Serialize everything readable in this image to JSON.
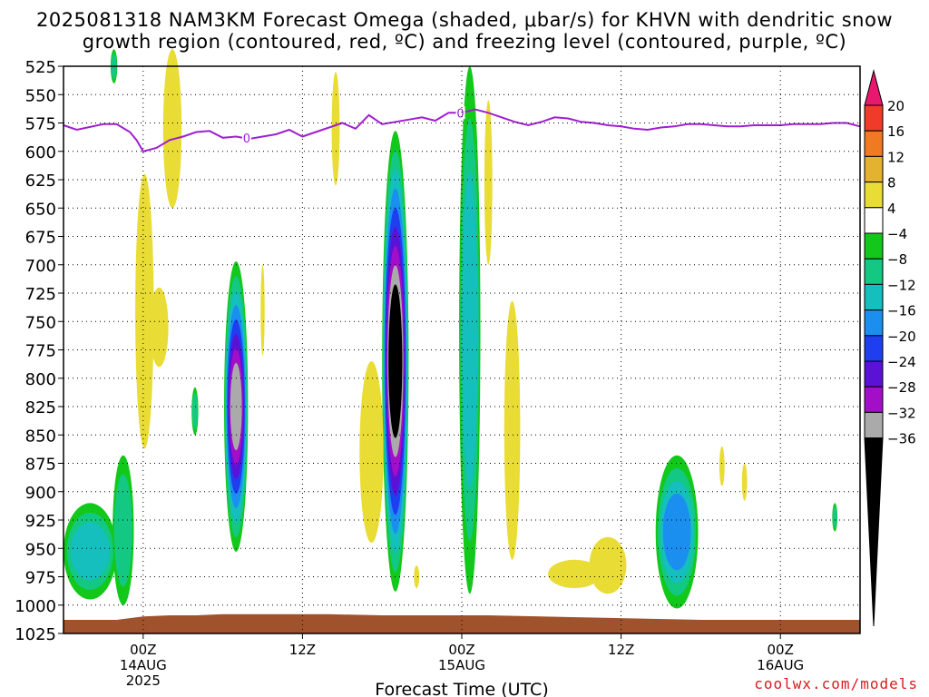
{
  "title_line1": "2025081318 NAM3KM Forecast Omega (shaded, μbar/s) for KHVN with dendritic snow",
  "title_line2": "growth region (contoured, red, ºC) and freezing level (contoured, purple, ºC)",
  "credit": "coolwx.com/models",
  "chart_data": {
    "type": "heatmap",
    "title": "2025081318 NAM3KM Forecast Omega (shaded, μbar/s) for KHVN with dendritic snow growth region (contoured, red, ºC) and freezing level (contoured, purple, ºC)",
    "xlabel": "Forecast Time (UTC)",
    "ylabel": "",
    "x_hours_range": [
      -6,
      54
    ],
    "x_ticks": [
      {
        "h": 0,
        "label": "00Z",
        "sub": [
          "14AUG",
          "2025"
        ]
      },
      {
        "h": 12,
        "label": "12Z",
        "sub": []
      },
      {
        "h": 24,
        "label": "00Z",
        "sub": [
          "15AUG"
        ]
      },
      {
        "h": 36,
        "label": "12Z",
        "sub": []
      },
      {
        "h": 48,
        "label": "00Z",
        "sub": [
          "16AUG"
        ]
      }
    ],
    "y_range": [
      525,
      1025
    ],
    "y_ticks": [
      525,
      550,
      575,
      600,
      625,
      650,
      675,
      700,
      725,
      750,
      775,
      800,
      825,
      850,
      875,
      900,
      925,
      950,
      975,
      1000,
      1025
    ],
    "colorbar": {
      "labels": [
        "20",
        "16",
        "12",
        "8",
        "4",
        "−4",
        "−8",
        "−12",
        "−16",
        "−20",
        "−24",
        "−28",
        "−32",
        "−36"
      ],
      "colors": [
        "#e8186e",
        "#f03a2a",
        "#f07a20",
        "#e3b22e",
        "#e9dc34",
        "#ffffff",
        "#12c81b",
        "#12c883",
        "#14bfbd",
        "#1a8ff0",
        "#1f3ef0",
        "#5a12d6",
        "#a30fc8",
        "#aaaaaa",
        "#000000"
      ]
    },
    "freezing_level": {
      "label": "0",
      "points": [
        [
          -6,
          577
        ],
        [
          -5,
          581
        ],
        [
          -3,
          576
        ],
        [
          -2,
          576
        ],
        [
          -1,
          583
        ],
        [
          -0.5,
          590
        ],
        [
          0,
          600
        ],
        [
          1,
          597
        ],
        [
          2,
          590
        ],
        [
          3,
          587
        ],
        [
          4,
          583
        ],
        [
          5,
          582
        ],
        [
          6,
          588
        ],
        [
          7,
          587
        ],
        [
          8,
          589
        ],
        [
          9,
          587
        ],
        [
          10,
          585
        ],
        [
          11,
          581
        ],
        [
          12,
          587
        ],
        [
          13,
          583
        ],
        [
          14,
          579
        ],
        [
          15,
          575
        ],
        [
          16,
          580
        ],
        [
          17,
          568
        ],
        [
          18,
          576
        ],
        [
          19,
          574
        ],
        [
          20,
          572
        ],
        [
          21,
          570
        ],
        [
          22,
          573
        ],
        [
          23,
          566
        ],
        [
          24,
          566
        ],
        [
          25,
          563
        ],
        [
          26,
          566
        ],
        [
          27,
          570
        ],
        [
          28,
          574
        ],
        [
          29,
          577
        ],
        [
          30,
          574
        ],
        [
          31,
          570
        ],
        [
          32,
          571
        ],
        [
          33,
          574
        ],
        [
          34,
          575
        ],
        [
          35,
          577
        ],
        [
          36,
          578
        ],
        [
          37,
          580
        ],
        [
          38,
          581
        ],
        [
          39,
          579
        ],
        [
          40,
          578
        ],
        [
          41,
          576
        ],
        [
          42,
          576
        ],
        [
          43,
          577
        ],
        [
          44,
          578
        ],
        [
          45,
          578
        ],
        [
          46,
          577
        ],
        [
          47,
          577
        ],
        [
          48,
          577
        ],
        [
          49,
          576
        ],
        [
          50,
          576
        ],
        [
          51,
          576
        ],
        [
          52,
          575
        ],
        [
          53,
          575
        ],
        [
          54,
          578
        ]
      ]
    },
    "surface_points": [
      [
        -6,
        1013
      ],
      [
        -2,
        1013
      ],
      [
        0,
        1010
      ],
      [
        2,
        1009
      ],
      [
        4,
        1009
      ],
      [
        6,
        1008
      ],
      [
        10,
        1008
      ],
      [
        14,
        1008
      ],
      [
        18,
        1009
      ],
      [
        22,
        1009
      ],
      [
        26,
        1009
      ],
      [
        30,
        1010
      ],
      [
        34,
        1011
      ],
      [
        38,
        1012
      ],
      [
        42,
        1013
      ],
      [
        46,
        1013
      ],
      [
        50,
        1013
      ],
      [
        54,
        1013
      ]
    ],
    "omega_features": [
      {
        "h": 7,
        "p1": 697,
        "p2": 953,
        "w": 0.9,
        "min": -32
      },
      {
        "h": 19,
        "p1": 582,
        "p2": 988,
        "w": 1.0,
        "min": -40
      },
      {
        "h": 24.6,
        "p1": 525,
        "p2": 990,
        "w": 0.8,
        "min": -12
      },
      {
        "h": 40.2,
        "p1": 868,
        "p2": 1003,
        "w": 1.6,
        "min": -16
      },
      {
        "h": -4,
        "p1": 910,
        "p2": 995,
        "w": 2.0,
        "min": -12
      },
      {
        "h": -1.5,
        "p1": 868,
        "p2": 1000,
        "w": 0.8,
        "min": -8
      },
      {
        "h": 3.9,
        "p1": 808,
        "p2": 850,
        "w": 0.25,
        "min": -8
      },
      {
        "h": 52.1,
        "p1": 910,
        "p2": 935,
        "w": 0.2,
        "min": -8
      },
      {
        "h": -2.2,
        "p1": 510,
        "p2": 540,
        "w": 0.25,
        "min": -8
      },
      {
        "h": 0.1,
        "p1": 620,
        "p2": 862,
        "w": 0.7,
        "max": 6
      },
      {
        "h": 1.2,
        "p1": 720,
        "p2": 790,
        "w": 0.7,
        "max": 6
      },
      {
        "h": 2.2,
        "p1": 510,
        "p2": 650,
        "w": 0.7,
        "max": 4
      },
      {
        "h": 9,
        "p1": 700,
        "p2": 780,
        "w": 0.15,
        "max": 4
      },
      {
        "h": 14.5,
        "p1": 530,
        "p2": 630,
        "w": 0.3,
        "max": 4
      },
      {
        "h": 17.2,
        "p1": 785,
        "p2": 945,
        "w": 0.9,
        "max": 4
      },
      {
        "h": 20.6,
        "p1": 965,
        "p2": 985,
        "w": 0.2,
        "max": 4
      },
      {
        "h": 26,
        "p1": 555,
        "p2": 700,
        "w": 0.3,
        "max": 4
      },
      {
        "h": 27.8,
        "p1": 732,
        "p2": 960,
        "w": 0.6,
        "max": 4
      },
      {
        "h": 32.5,
        "p1": 960,
        "p2": 985,
        "w": 2.0,
        "max": 4
      },
      {
        "h": 35,
        "p1": 940,
        "p2": 990,
        "w": 1.4,
        "max": 4
      },
      {
        "h": 43.6,
        "p1": 860,
        "p2": 895,
        "w": 0.2,
        "max": 4
      },
      {
        "h": 45.3,
        "p1": 875,
        "p2": 908,
        "w": 0.2,
        "max": 4
      }
    ]
  }
}
